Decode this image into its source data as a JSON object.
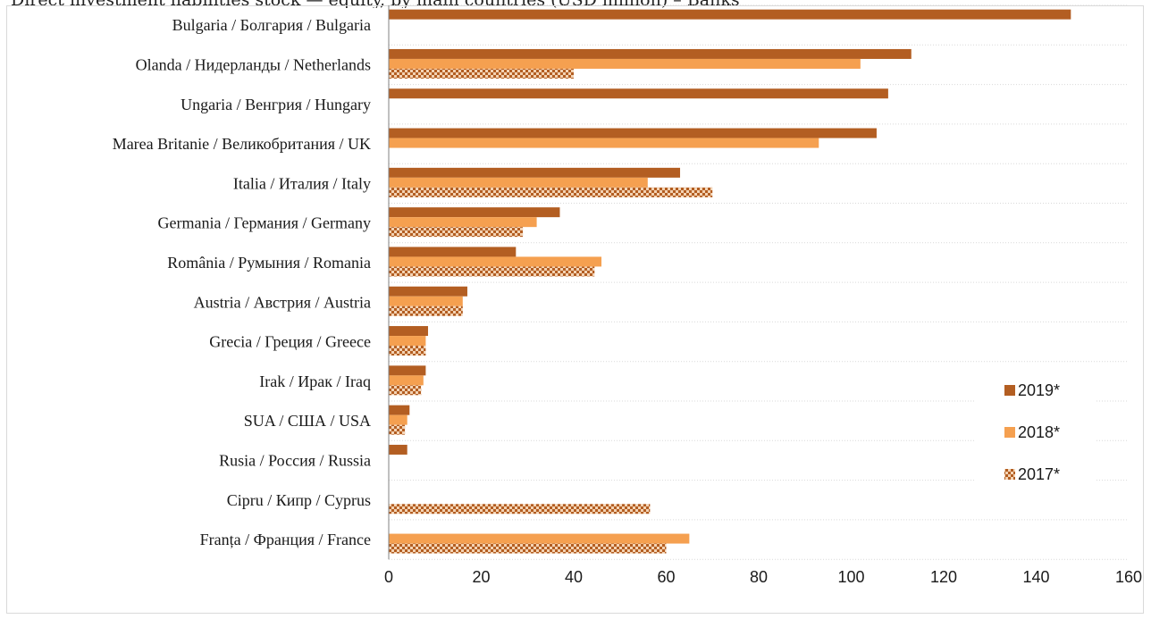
{
  "header": {
    "title": "Direct investment liabilities stock — equity, by main countries (USD million) – Banks"
  },
  "colors": {
    "y2019": "#b35e22",
    "y2018": "#f5a050",
    "y2017_a": "#b35e22",
    "y2017_b": "#f3d3b4",
    "grid": "#d9d9d9",
    "axis": "#808080"
  },
  "chart_data": {
    "type": "bar",
    "orientation": "horizontal",
    "categories": [
      "Bulgaria / Болгария / Bulgaria",
      "Olanda / Нидерланды / Netherlands",
      "Ungaria / Венгрия / Hungary",
      "Marea Britanie / Великобритания / UK",
      "Italia / Италия / Italy",
      "Germania / Германия / Germany",
      "România / Румыния / Romania",
      "Austria / Австрия / Austria",
      "Grecia / Греция / Greece",
      "Irak / Ирак / Iraq",
      "SUA / США / USA",
      "Rusia / Россия / Russia",
      "Cipru / Кипр / Cyprus",
      "Franța / Франция / France"
    ],
    "series": [
      {
        "name": "2019*",
        "values": [
          147.5,
          113,
          108,
          105.5,
          63,
          37,
          27.5,
          17,
          8.5,
          8,
          4.5,
          4,
          0,
          0
        ]
      },
      {
        "name": "2018*",
        "values": [
          0,
          102,
          0,
          93,
          56,
          32,
          46,
          16,
          8,
          7.5,
          4,
          0,
          0,
          65
        ]
      },
      {
        "name": "2017*",
        "values": [
          0,
          40,
          0,
          0,
          70,
          29,
          44.5,
          16,
          8,
          7,
          3.5,
          0,
          56.5,
          60
        ]
      }
    ],
    "xlim": [
      0,
      160
    ],
    "xticks": [
      0,
      20,
      40,
      60,
      80,
      100,
      120,
      140,
      160
    ],
    "grid": true,
    "legend": "right"
  }
}
